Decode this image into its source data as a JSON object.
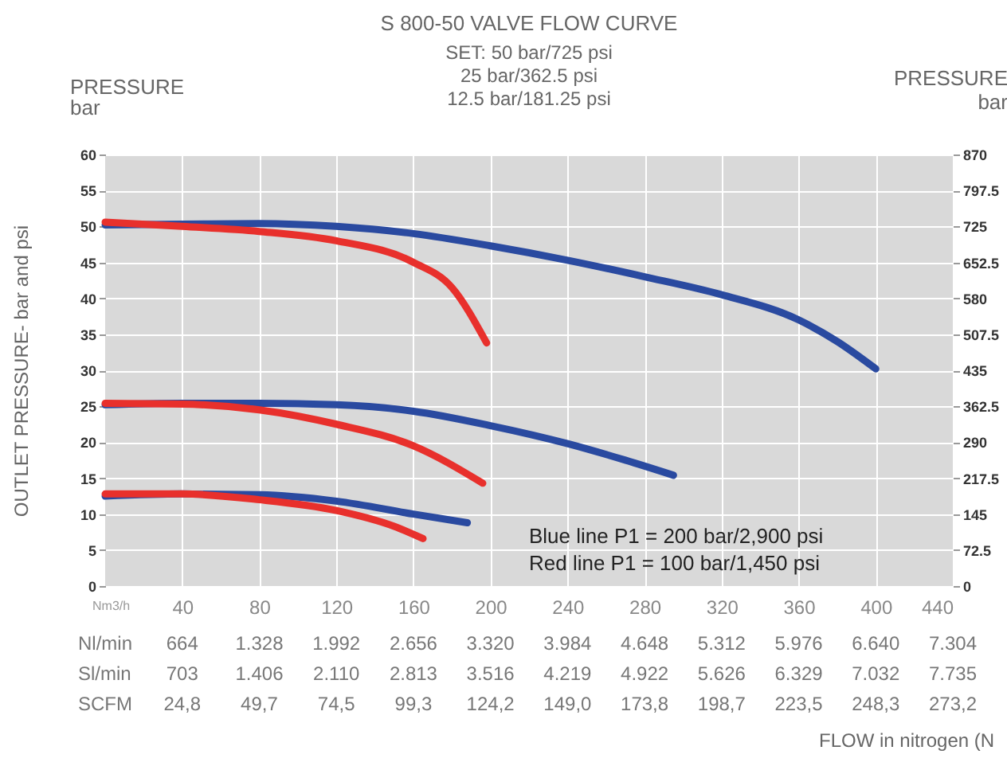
{
  "chart_data": {
    "type": "line",
    "title": "S 800-50 VALVE FLOW CURVE",
    "subtitle": "SET: 50 bar/725 psi\n25 bar/362.5 psi\n12.5 bar/181.25 psi",
    "ylabel": "OUTLET PRESSURE- bar and psi",
    "y2label": "PRESSURE\nbar",
    "annotations": [
      "Blue line P1 = 200 bar/2,900 psi",
      "Red line P1 = 100 bar/1,450 psi",
      "Nm3/h",
      "Nl/min 664 1.328 1.992 2.656 3.320 3.984 4.648 5.312 5.976 6.640 7.304",
      "Sl/min 703 1.406 2.110 2.813 3.516 4.219 4.922 5.626 6.329 7.032 7.735",
      "SCFM 24,8 49,7 74,5 99,3 124,2 149,0 173,8 198,7 223,5 248,3 273,2",
      "PRESSURE\nbar",
      "FLOW in nitrogen (N"
    ],
    "xlim": [
      0,
      440
    ],
    "xticks": [
      40,
      80,
      120,
      160,
      200,
      240,
      280,
      320,
      360,
      400,
      440
    ],
    "ylim": [
      0,
      60
    ],
    "yticks": [
      0,
      5,
      10,
      15,
      20,
      25,
      30,
      35,
      40,
      45,
      50,
      55,
      60
    ],
    "y2lim": [
      0,
      870
    ],
    "y2ticks": [
      0,
      72.5,
      145,
      217.5,
      290,
      362.5,
      435,
      507.5,
      580,
      652.5,
      725,
      797.5,
      870
    ],
    "grid": true,
    "series": [
      {
        "color": "#2a4aa0",
        "x": [
          0,
          40,
          80,
          120,
          160,
          200,
          240,
          280,
          320,
          360,
          380,
          400
        ],
        "values": [
          50.2,
          50.3,
          50.4,
          50,
          49,
          47.3,
          45.3,
          43,
          40.5,
          37,
          34,
          30.2
        ]
      },
      {
        "color": "#e8302c",
        "x": [
          0,
          40,
          80,
          120,
          160,
          180,
          198
        ],
        "values": [
          50.6,
          50,
          49.3,
          48,
          45,
          41.5,
          33.8
        ]
      },
      {
        "color": "#2a4aa0",
        "x": [
          0,
          40,
          80,
          120,
          160,
          200,
          240,
          270,
          295
        ],
        "values": [
          25.2,
          25.4,
          25.4,
          25.2,
          24.3,
          22.3,
          19.8,
          17.5,
          15.4
        ]
      },
      {
        "color": "#e8302c",
        "x": [
          0,
          40,
          80,
          120,
          160,
          196
        ],
        "values": [
          25.4,
          25.3,
          24.5,
          22.5,
          19.5,
          14.3
        ]
      },
      {
        "color": "#2a4aa0",
        "x": [
          0,
          40,
          80,
          120,
          160,
          188
        ],
        "values": [
          12.5,
          12.8,
          12.7,
          11.8,
          10,
          8.8
        ]
      },
      {
        "color": "#e8302c",
        "x": [
          0,
          40,
          80,
          120,
          150,
          165
        ],
        "values": [
          12.8,
          12.8,
          12,
          10.5,
          8.3,
          6.6
        ]
      }
    ]
  }
}
